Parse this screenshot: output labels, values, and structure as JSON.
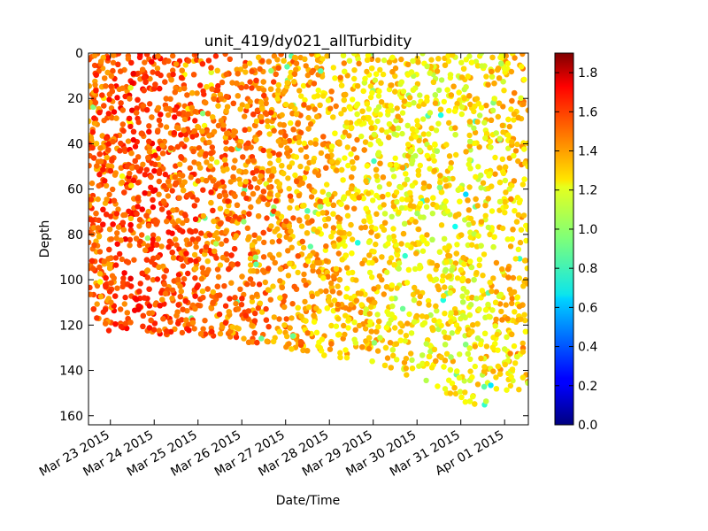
{
  "chart_data": {
    "type": "scatter",
    "title": "unit_419/dy021_allTurbidity",
    "xlabel": "Date/Time",
    "ylabel": "Depth",
    "x_tick_labels": [
      "Mar 23 2015",
      "Mar 24 2015",
      "Mar 25 2015",
      "Mar 26 2015",
      "Mar 27 2015",
      "Mar 28 2015",
      "Mar 29 2015",
      "Mar 30 2015",
      "Mar 31 2015",
      "Apr 01 2015"
    ],
    "xlim": [
      "2015-03-22 12:00",
      "2015-04-01 13:00"
    ],
    "y_ticks": [
      0,
      20,
      40,
      60,
      80,
      100,
      120,
      140,
      160
    ],
    "ylim": [
      0,
      164
    ],
    "y_inverted": true,
    "colorbar": {
      "label": "",
      "ticks": [
        "0.0",
        "0.2",
        "0.4",
        "0.6",
        "0.8",
        "1.0",
        "1.2",
        "1.4",
        "1.6",
        "1.8"
      ],
      "range": [
        0,
        1.9
      ],
      "colormap": "jet"
    },
    "max_depth_profile": [
      {
        "date": "2015-03-22 12:00",
        "depth": 105
      },
      {
        "date": "2015-03-22 16:00",
        "depth": 118
      },
      {
        "date": "2015-03-23 00:00",
        "depth": 123
      },
      {
        "date": "2015-03-24 00:00",
        "depth": 124
      },
      {
        "date": "2015-03-25 00:00",
        "depth": 125
      },
      {
        "date": "2015-03-26 00:00",
        "depth": 127
      },
      {
        "date": "2015-03-27 00:00",
        "depth": 131
      },
      {
        "date": "2015-03-28 00:00",
        "depth": 134
      },
      {
        "date": "2015-03-29 00:00",
        "depth": 138
      },
      {
        "date": "2015-03-30 00:00",
        "depth": 144
      },
      {
        "date": "2015-03-31 00:00",
        "depth": 153
      },
      {
        "date": "2015-03-31 12:00",
        "depth": 161
      },
      {
        "date": "2015-04-01 00:00",
        "depth": 151
      },
      {
        "date": "2015-04-01 13:00",
        "depth": 147
      }
    ],
    "turbidity_trend": [
      {
        "date": "2015-03-22 12:00",
        "turbidity": 1.45
      },
      {
        "date": "2015-03-23 12:00",
        "turbidity": 1.55
      },
      {
        "date": "2015-03-24 12:00",
        "turbidity": 1.5
      },
      {
        "date": "2015-03-25 12:00",
        "turbidity": 1.45
      },
      {
        "date": "2015-03-26 12:00",
        "turbidity": 1.42
      },
      {
        "date": "2015-03-27 12:00",
        "turbidity": 1.35
      },
      {
        "date": "2015-03-28 12:00",
        "turbidity": 1.28
      },
      {
        "date": "2015-03-29 12:00",
        "turbidity": 1.22
      },
      {
        "date": "2015-03-30 12:00",
        "turbidity": 1.2
      },
      {
        "date": "2015-03-31 12:00",
        "turbidity": 1.22
      },
      {
        "date": "2015-04-01 12:00",
        "turbidity": 1.3
      }
    ]
  }
}
